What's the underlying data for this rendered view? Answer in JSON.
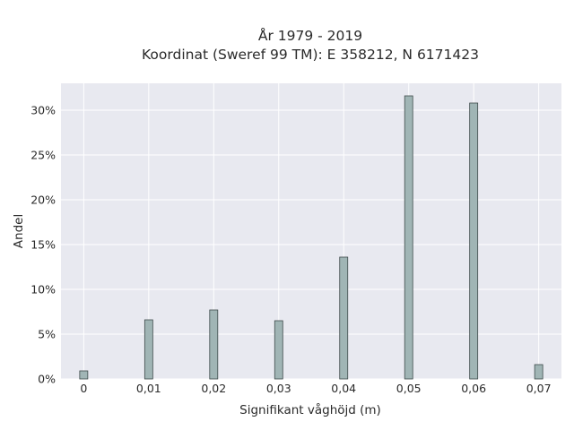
{
  "chart_data": {
    "type": "bar",
    "title_lines": [
      "År 1979 - 2019",
      "Koordinat (Sweref 99 TM): E 358212, N 6171423"
    ],
    "xlabel": "Signifikant våghöjd (m)",
    "ylabel": "Andel",
    "x": [
      0,
      0.01,
      0.02,
      0.03,
      0.04,
      0.05,
      0.06,
      0.07
    ],
    "x_tick_labels": [
      "0",
      "0,01",
      "0,02",
      "0,03",
      "0,04",
      "0,05",
      "0,06",
      "0,07"
    ],
    "values": [
      0.9,
      6.6,
      7.7,
      6.5,
      13.6,
      31.6,
      30.8,
      1.6
    ],
    "unit": "%",
    "y_ticks": [
      0,
      5,
      10,
      15,
      20,
      25,
      30
    ],
    "y_tick_labels": [
      "0%",
      "5%",
      "10%",
      "15%",
      "20%",
      "25%",
      "30%"
    ],
    "xlim": [
      -0.0035,
      0.0735
    ],
    "ylim": [
      0,
      33
    ],
    "grid": true,
    "colors": {
      "plot_background": "#e8e9f0",
      "grid": "#ffffff",
      "bar_fill": "#a0b5b5",
      "bar_stroke": "#3d4a4a"
    }
  }
}
